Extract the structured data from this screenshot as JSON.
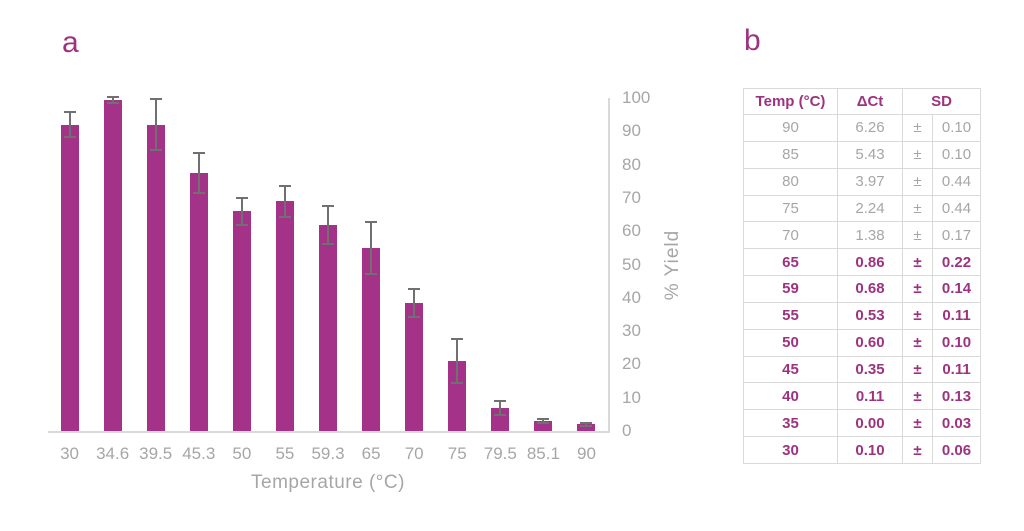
{
  "panels": {
    "a": "a",
    "b": "b"
  },
  "colors": {
    "bar": "#A53289",
    "magenta_text": "#9D3380",
    "gray_text": "#A6A6A6",
    "error_bar": "#707070",
    "axis_line": "#D9D9D9",
    "table_border": "#D9D9D9"
  },
  "chart_data": {
    "type": "bar",
    "title": "",
    "xlabel": "Temperature (°C)",
    "ylabel": "% Yield",
    "ylim": [
      0,
      100
    ],
    "yticks": [
      0,
      10,
      20,
      30,
      40,
      50,
      60,
      70,
      80,
      90,
      100
    ],
    "grid": false,
    "legend_position": "none",
    "categories": [
      "30",
      "34.6",
      "39.5",
      "45.3",
      "50",
      "55",
      "59.3",
      "65",
      "70",
      "75",
      "79.5",
      "85.1",
      "90"
    ],
    "series": [
      {
        "name": "% Yield",
        "values": [
          92,
          99.5,
          92,
          77.5,
          66,
          69,
          62,
          55,
          38.5,
          21,
          7,
          3,
          2
        ],
        "errors": [
          4,
          1.2,
          8,
          6.3,
          4.4,
          5,
          6,
          8,
          4.5,
          7,
          2.4,
          1,
          0.8
        ]
      }
    ]
  },
  "table": {
    "headers": {
      "temp": "Temp (°C)",
      "dct": "ΔCt",
      "sd": "SD"
    },
    "plus_minus": "±",
    "rows": [
      {
        "temp": "90",
        "dct": "6.26",
        "sd": "0.10",
        "highlight": false
      },
      {
        "temp": "85",
        "dct": "5.43",
        "sd": "0.10",
        "highlight": false
      },
      {
        "temp": "80",
        "dct": "3.97",
        "sd": "0.44",
        "highlight": false
      },
      {
        "temp": "75",
        "dct": "2.24",
        "sd": "0.44",
        "highlight": false
      },
      {
        "temp": "70",
        "dct": "1.38",
        "sd": "0.17",
        "highlight": false
      },
      {
        "temp": "65",
        "dct": "0.86",
        "sd": "0.22",
        "highlight": true
      },
      {
        "temp": "59",
        "dct": "0.68",
        "sd": "0.14",
        "highlight": true
      },
      {
        "temp": "55",
        "dct": "0.53",
        "sd": "0.11",
        "highlight": true
      },
      {
        "temp": "50",
        "dct": "0.60",
        "sd": "0.10",
        "highlight": true
      },
      {
        "temp": "45",
        "dct": "0.35",
        "sd": "0.11",
        "highlight": true
      },
      {
        "temp": "40",
        "dct": "0.11",
        "sd": "0.13",
        "highlight": true
      },
      {
        "temp": "35",
        "dct": "0.00",
        "sd": "0.03",
        "highlight": true
      },
      {
        "temp": "30",
        "dct": "0.10",
        "sd": "0.06",
        "highlight": true
      }
    ]
  }
}
